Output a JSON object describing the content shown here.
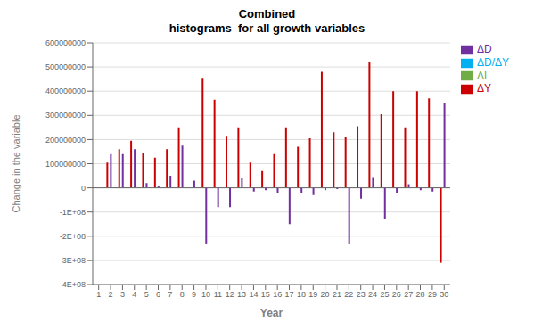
{
  "chart_data": {
    "type": "bar",
    "title": "Combined\nhistograms  for all growth variables",
    "x_label": "Year",
    "y_label": "Change in the variable",
    "categories": [
      "1",
      "2",
      "3",
      "4",
      "5",
      "6",
      "7",
      "8",
      "9",
      "10",
      "11",
      "12",
      "13",
      "14",
      "15",
      "16",
      "17",
      "18",
      "19",
      "20",
      "21",
      "22",
      "23",
      "24",
      "25",
      "26",
      "27",
      "28",
      "29",
      "30"
    ],
    "series": [
      {
        "name": "ΔY",
        "color": "#cc0000",
        "values": [
          0,
          105000000,
          160000000,
          195000000,
          145000000,
          125000000,
          160000000,
          250000000,
          0,
          455000000,
          365000000,
          215000000,
          250000000,
          105000000,
          70000000,
          140000000,
          250000000,
          170000000,
          205000000,
          480000000,
          230000000,
          210000000,
          255000000,
          520000000,
          305000000,
          400000000,
          250000000,
          400000000,
          370000000,
          -310000000
        ]
      },
      {
        "name": "ΔL",
        "color": "#70ad47",
        "values": [
          0,
          0,
          0,
          0,
          0,
          0,
          0,
          0,
          0,
          0,
          0,
          0,
          0,
          0,
          0,
          0,
          0,
          0,
          0,
          0,
          0,
          0,
          0,
          0,
          0,
          0,
          0,
          0,
          0,
          0
        ]
      },
      {
        "name": "ΔD",
        "color": "#7030a0",
        "values": [
          0,
          140000000,
          140000000,
          160000000,
          20000000,
          10000000,
          50000000,
          175000000,
          30000000,
          -230000000,
          -80000000,
          -80000000,
          40000000,
          -15000000,
          -10000000,
          -20000000,
          -150000000,
          -20000000,
          -30000000,
          -10000000,
          -5000000,
          -230000000,
          -45000000,
          45000000,
          -130000000,
          -20000000,
          15000000,
          -10000000,
          -15000000,
          350000000
        ]
      },
      {
        "name": "ΔD/ΔY",
        "color": "#00b0f0",
        "values": [
          0,
          0,
          0,
          0,
          0,
          0,
          0,
          0,
          0,
          0,
          0,
          0,
          0,
          0,
          0,
          0,
          0,
          0,
          0,
          0,
          0,
          0,
          0,
          0,
          0,
          0,
          0,
          0,
          0,
          0
        ]
      }
    ],
    "ylim": [
      -400000000,
      600000000
    ],
    "yticks": [
      {
        "value": -400000000,
        "label": "-4E+08"
      },
      {
        "value": -300000000,
        "label": "-3E+08"
      },
      {
        "value": -200000000,
        "label": "-2E+08"
      },
      {
        "value": -100000000,
        "label": "-1E+08"
      },
      0,
      100000000,
      200000000,
      300000000,
      400000000,
      500000000,
      600000000
    ],
    "grid": true,
    "legend": "right"
  }
}
